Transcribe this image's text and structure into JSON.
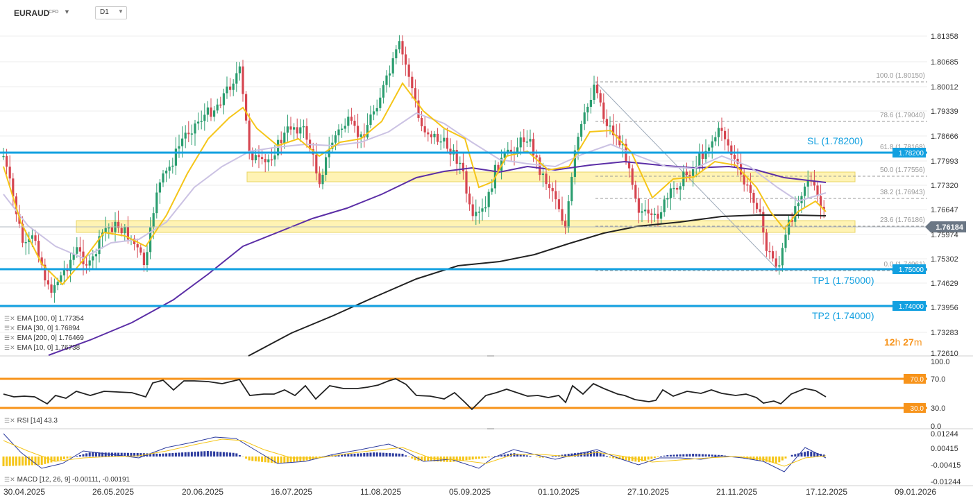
{
  "header": {
    "symbol": "EURAUD",
    "symbol_type": "CFD",
    "timeframe": "D1"
  },
  "price_scale": [
    "1.81358",
    "1.80685",
    "1.80012",
    "1.79339",
    "1.78666",
    "1.77993",
    "1.77320",
    "1.76647",
    "1.75974",
    "1.75302",
    "1.74629",
    "1.73956",
    "1.73283",
    "1.72610"
  ],
  "rsi_scale": [
    "100.0",
    "70.0",
    "30.0",
    "0.0"
  ],
  "macd_scale": [
    "0.01244",
    "0.00415",
    "-0.00415",
    "-0.01244"
  ],
  "date_axis": [
    "30.04.2025",
    "26.05.2025",
    "20.06.2025",
    "16.07.2025",
    "11.08.2025",
    "05.09.2025",
    "01.10.2025",
    "27.10.2025",
    "21.11.2025",
    "17.12.2025",
    "09.01.2026"
  ],
  "fib_levels": [
    {
      "label": "100.0 (1.80150)"
    },
    {
      "label": "78.6 (1.79040)"
    },
    {
      "label": "61.8 (1.78168)"
    },
    {
      "label": "50.0 (1.77556)"
    },
    {
      "label": "38.2 (1.76943)"
    },
    {
      "label": "23.6 (1.76186)"
    },
    {
      "label": "0.0 (1.74961)"
    }
  ],
  "levels": {
    "sl": {
      "label": "SL (1.78200)",
      "tag": "1.78200"
    },
    "tp1": {
      "label": "TP1 (1.75000)",
      "tag": "1.75000"
    },
    "tp2": {
      "label": "TP2 (1.74000)",
      "tag": "1.74000"
    },
    "current": {
      "tag": "1.76184"
    }
  },
  "legend": [
    {
      "text": "EMA [100, 0] 1.77354"
    },
    {
      "text": "EMA [30, 0] 1.76894"
    },
    {
      "text": "EMA [200, 0] 1.76469"
    },
    {
      "text": "EMA [10, 0] 1.76738"
    }
  ],
  "rsi": {
    "legend": "RSI [14] 43.3",
    "upper_tag": "70.0",
    "lower_tag": "30.0"
  },
  "macd": {
    "legend": "MACD [12, 26, 9] -0.00111, -0.00191"
  },
  "countdown": {
    "hours": "12",
    "h": "h",
    "minutes": "27",
    "m": "m"
  },
  "colors": {
    "blue_line": "#12a0e0",
    "zone": "#fff1a8",
    "rsi_band": "#f7931a",
    "ema200": "#222222",
    "ema100": "#5b2ea6",
    "ema30": "#c9bfe3",
    "ema10": "#f5c518"
  }
}
